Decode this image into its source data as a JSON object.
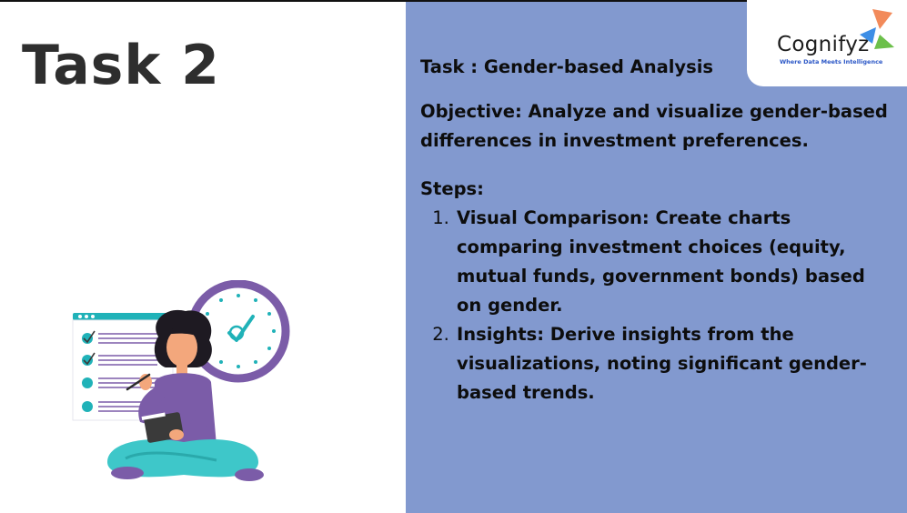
{
  "slide": {
    "heading": "Task 2"
  },
  "logo": {
    "name": "Cognifyz",
    "tagline": "Where Data Meets Intelligence",
    "colors": {
      "orange": "#f28a5a",
      "blue": "#3d8ee6",
      "green": "#6cc04a"
    }
  },
  "content": {
    "task_title": "Task : Gender-based Analysis",
    "objective": "Objective: Analyze and visualize gender-based differences in investment preferences.",
    "steps_label": "Steps:",
    "steps": [
      {
        "text": "Visual Comparison: Create charts comparing investment choices (equity, mutual funds, government bonds) based on gender."
      },
      {
        "text": "Insights: Derive insights from the visualizations, noting significant gender-based trends."
      }
    ]
  },
  "colors": {
    "right_panel": "#8299cf",
    "heading_text": "#2e2e2e",
    "teal": "#20b2b8",
    "purple": "#7b5ca8"
  },
  "illustration": {
    "icon": "person-with-checklist-and-clock-icon"
  }
}
